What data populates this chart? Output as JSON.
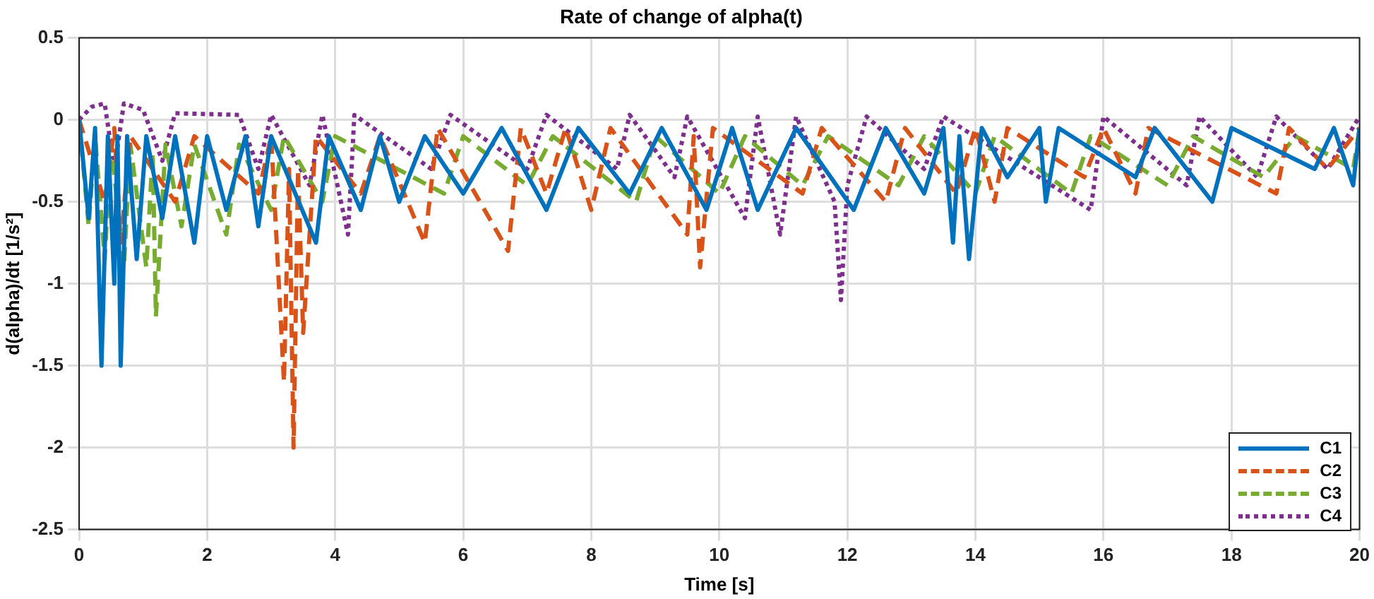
{
  "chart_data": {
    "type": "line",
    "title": "Rate of change of alpha(t)",
    "xlabel": "Time [s]",
    "ylabel": "d(alpha)/dt [1/s²]",
    "xlim": [
      0,
      20
    ],
    "xticks": [
      0,
      2,
      4,
      6,
      8,
      10,
      12,
      14,
      16,
      18,
      20
    ],
    "ylim": [
      -2.5,
      0.5
    ],
    "yticks": [
      -2.5,
      -2,
      -1.5,
      -1,
      -0.5,
      0,
      0.5
    ],
    "grid": true,
    "legend": "bottom right",
    "marker": "none",
    "series": [
      {
        "name": "C1",
        "color": "#0072bd",
        "line_style": "solid",
        "x": [
          0,
          0.15,
          0.25,
          0.35,
          0.45,
          0.55,
          0.6,
          0.65,
          0.75,
          0.9,
          1.05,
          1.3,
          1.5,
          1.8,
          2.0,
          2.3,
          2.6,
          2.8,
          3.0,
          3.7,
          3.9,
          4.4,
          4.7,
          5.0,
          5.4,
          6.0,
          6.6,
          7.3,
          7.8,
          8.6,
          9.1,
          9.8,
          10.2,
          10.6,
          11.2,
          12.1,
          12.6,
          13.2,
          13.5,
          13.65,
          13.75,
          13.9,
          14.1,
          14.5,
          15.0,
          15.1,
          15.3,
          16.5,
          16.8,
          17.7,
          18.0,
          19.3,
          19.6,
          19.9,
          20
        ],
        "values": [
          0,
          -0.6,
          -0.05,
          -1.5,
          -0.1,
          -1.0,
          -0.1,
          -1.5,
          -0.1,
          -0.85,
          -0.1,
          -0.6,
          -0.1,
          -0.75,
          -0.1,
          -0.55,
          -0.1,
          -0.65,
          -0.1,
          -0.75,
          -0.1,
          -0.55,
          -0.1,
          -0.5,
          -0.1,
          -0.45,
          -0.05,
          -0.55,
          -0.05,
          -0.45,
          -0.05,
          -0.55,
          -0.05,
          -0.55,
          -0.05,
          -0.55,
          -0.05,
          -0.45,
          -0.05,
          -0.75,
          -0.1,
          -0.85,
          -0.05,
          -0.35,
          -0.05,
          -0.5,
          -0.05,
          -0.35,
          -0.05,
          -0.5,
          -0.05,
          -0.3,
          -0.05,
          -0.4,
          -0.05
        ]
      },
      {
        "name": "C2",
        "color": "#d95319",
        "line_style": "dashed",
        "x": [
          0,
          0.4,
          0.55,
          0.65,
          0.8,
          1.5,
          1.8,
          2.8,
          3.0,
          3.2,
          3.28,
          3.35,
          3.42,
          3.5,
          3.7,
          4.4,
          4.7,
          5.4,
          5.6,
          6.7,
          6.9,
          7.3,
          7.6,
          8.0,
          8.3,
          9.5,
          9.6,
          9.7,
          9.9,
          11.3,
          11.6,
          12.6,
          12.9,
          13.7,
          14.0,
          14.3,
          14.5,
          15.7,
          16.0,
          16.5,
          16.7,
          18.7,
          18.9,
          19.5,
          20
        ],
        "values": [
          0,
          -0.5,
          -0.05,
          -0.75,
          -0.1,
          -0.5,
          -0.1,
          -0.45,
          -0.1,
          -1.6,
          -0.3,
          -2.0,
          -0.3,
          -1.3,
          -0.1,
          -0.45,
          -0.1,
          -0.75,
          -0.05,
          -0.8,
          -0.05,
          -0.45,
          -0.05,
          -0.55,
          -0.05,
          -0.7,
          -0.1,
          -0.9,
          -0.05,
          -0.45,
          -0.05,
          -0.5,
          -0.05,
          -0.45,
          -0.05,
          -0.5,
          -0.05,
          -0.35,
          -0.05,
          -0.45,
          -0.05,
          -0.45,
          -0.05,
          -0.3,
          -0.05
        ]
      },
      {
        "name": "C3",
        "color": "#77ac30",
        "line_style": "dashed",
        "x": [
          0,
          0.15,
          0.25,
          0.4,
          0.5,
          0.7,
          0.8,
          1.05,
          1.15,
          1.2,
          1.35,
          1.6,
          1.8,
          2.3,
          2.5,
          3.0,
          3.2,
          3.8,
          4.0,
          5.7,
          6.0,
          7.0,
          7.4,
          8.7,
          9.0,
          10.0,
          10.4,
          11.3,
          11.7,
          12.8,
          13.2,
          14.0,
          14.3,
          15.5,
          15.8,
          17.0,
          17.4,
          18.5,
          19.0,
          19.9,
          20
        ],
        "values": [
          0,
          -0.65,
          -0.1,
          -0.85,
          -0.15,
          -0.9,
          -0.15,
          -0.9,
          -0.2,
          -1.2,
          -0.15,
          -0.65,
          -0.15,
          -0.7,
          -0.15,
          -0.55,
          -0.1,
          -0.5,
          -0.1,
          -0.45,
          -0.1,
          -0.4,
          -0.1,
          -0.5,
          -0.1,
          -0.45,
          -0.1,
          -0.4,
          -0.1,
          -0.4,
          -0.1,
          -0.45,
          -0.1,
          -0.45,
          -0.1,
          -0.4,
          -0.1,
          -0.35,
          -0.1,
          -0.3,
          -0.05
        ]
      },
      {
        "name": "C4",
        "color": "#7e2f8e",
        "line_style": "dotted",
        "x": [
          0,
          0.2,
          0.4,
          0.55,
          0.7,
          1.0,
          1.3,
          1.5,
          2.5,
          2.8,
          3.0,
          3.6,
          3.8,
          4.2,
          4.3,
          5.5,
          5.8,
          7.0,
          7.3,
          8.4,
          8.6,
          9.3,
          9.5,
          10.4,
          10.6,
          10.95,
          11.2,
          11.8,
          11.9,
          12.0,
          12.3,
          13.2,
          13.5,
          15.8,
          16.0,
          17.3,
          17.5,
          18.4,
          18.7,
          19.5,
          20
        ],
        "values": [
          0,
          0.08,
          0.1,
          -0.3,
          0.1,
          0.06,
          -0.25,
          0.04,
          0.03,
          -0.3,
          0.03,
          -0.4,
          0.03,
          -0.7,
          0.03,
          -0.3,
          0.03,
          -0.3,
          0.03,
          -0.3,
          0.03,
          -0.35,
          0.02,
          -0.6,
          0.02,
          -0.7,
          0.02,
          -0.5,
          -1.1,
          -0.4,
          0.02,
          -0.3,
          0.02,
          -0.55,
          0.02,
          -0.4,
          0.02,
          -0.35,
          0.02,
          -0.3,
          0.02
        ]
      }
    ]
  }
}
